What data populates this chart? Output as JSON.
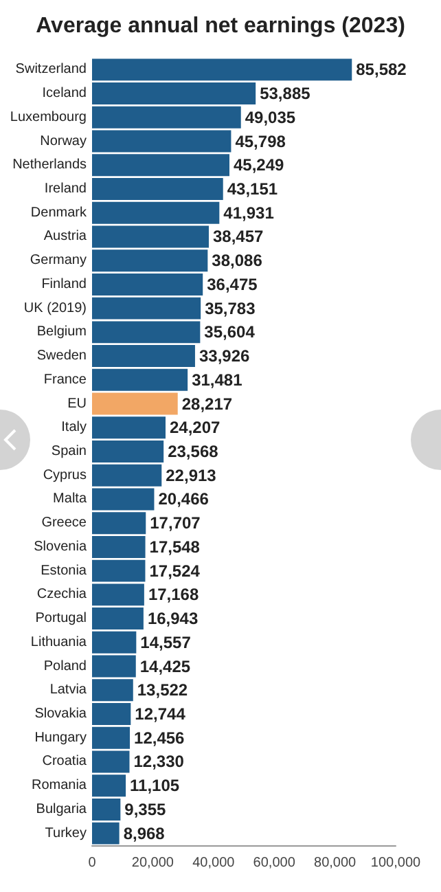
{
  "chart_data": {
    "type": "bar",
    "orientation": "horizontal",
    "title": "Average annual net earnings (2023)",
    "categories": [
      "Switzerland",
      "Iceland",
      "Luxembourg",
      "Norway",
      "Netherlands",
      "Ireland",
      "Denmark",
      "Austria",
      "Germany",
      "Finland",
      "UK (2019)",
      "Belgium",
      "Sweden",
      "France",
      "EU",
      "Italy",
      "Spain",
      "Cyprus",
      "Malta",
      "Greece",
      "Slovenia",
      "Estonia",
      "Czechia",
      "Portugal",
      "Lithuania",
      "Poland",
      "Latvia",
      "Slovakia",
      "Hungary",
      "Croatia",
      "Romania",
      "Bulgaria",
      "Turkey"
    ],
    "values": [
      85582,
      53885,
      49035,
      45798,
      45249,
      43151,
      41931,
      38457,
      38086,
      36475,
      35783,
      35604,
      33926,
      31481,
      28217,
      24207,
      23568,
      22913,
      20466,
      17707,
      17548,
      17524,
      17168,
      16943,
      14557,
      14425,
      13522,
      12744,
      12456,
      12330,
      11105,
      9355,
      8968
    ],
    "value_labels": [
      "85,582",
      "53,885",
      "49,035",
      "45,798",
      "45,249",
      "43,151",
      "41,931",
      "38,457",
      "38,086",
      "36,475",
      "35,783",
      "35,604",
      "33,926",
      "31,481",
      "28,217",
      "24,207",
      "23,568",
      "22,913",
      "20,466",
      "17,707",
      "17,548",
      "17,524",
      "17,168",
      "16,943",
      "14,557",
      "14,425",
      "13,522",
      "12,744",
      "12,456",
      "12,330",
      "11,105",
      "9,355",
      "8,968"
    ],
    "colors": [
      "#1f5d8c",
      "#1f5d8c",
      "#1f5d8c",
      "#1f5d8c",
      "#1f5d8c",
      "#1f5d8c",
      "#1f5d8c",
      "#1f5d8c",
      "#1f5d8c",
      "#1f5d8c",
      "#1f5d8c",
      "#1f5d8c",
      "#1f5d8c",
      "#1f5d8c",
      "#f2a765",
      "#1f5d8c",
      "#1f5d8c",
      "#1f5d8c",
      "#1f5d8c",
      "#1f5d8c",
      "#1f5d8c",
      "#1f5d8c",
      "#1f5d8c",
      "#1f5d8c",
      "#1f5d8c",
      "#1f5d8c",
      "#1f5d8c",
      "#1f5d8c",
      "#1f5d8c",
      "#1f5d8c",
      "#1f5d8c",
      "#1f5d8c",
      "#1f5d8c"
    ],
    "xlim": [
      0,
      100000
    ],
    "xticks": [
      {
        "value": 0,
        "label": "0"
      },
      {
        "value": 20000,
        "label": "20,000"
      },
      {
        "value": 40000,
        "label": "40,000"
      },
      {
        "value": 60000,
        "label": "60,000"
      },
      {
        "value": 80000,
        "label": "80,000"
      },
      {
        "value": 100000,
        "label": "100,000"
      }
    ],
    "grid": false
  }
}
